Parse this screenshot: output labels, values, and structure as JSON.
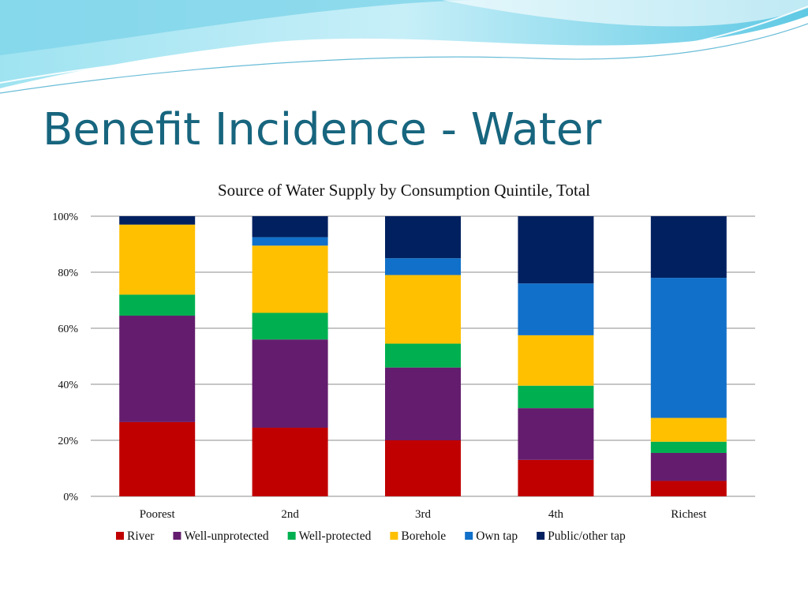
{
  "slide": {
    "title": "Benefit Incidence - Water"
  },
  "colors": {
    "title": "#17657e",
    "wave_light": "#aee6f2",
    "wave_mid": "#5cc8e3",
    "wave_dark": "#2a9fc6"
  },
  "chart_data": {
    "type": "bar",
    "stacked": true,
    "title": "Source of Water Supply by Consumption Quintile, Total",
    "xlabel": "",
    "ylabel": "",
    "ylim": [
      0,
      100
    ],
    "y_ticks": [
      "0%",
      "20%",
      "40%",
      "60%",
      "80%",
      "100%"
    ],
    "y_tick_values": [
      0,
      20,
      40,
      60,
      80,
      100
    ],
    "grid": true,
    "legend_position": "bottom",
    "categories": [
      "Poorest",
      "2nd",
      "3rd",
      "4th",
      "Richest"
    ],
    "series": [
      {
        "name": "River",
        "color": "#c00000",
        "values": [
          26.5,
          24.5,
          20,
          13,
          5.5
        ]
      },
      {
        "name": "Well-unprotected",
        "color": "#641d6e",
        "values": [
          38,
          31.5,
          26,
          18.5,
          10
        ]
      },
      {
        "name": "Well-protected",
        "color": "#00b050",
        "values": [
          7.5,
          9.5,
          8.5,
          8,
          4
        ]
      },
      {
        "name": "Borehole",
        "color": "#ffc000",
        "values": [
          25,
          24,
          24.5,
          18,
          8.5
        ]
      },
      {
        "name": "Own tap",
        "color": "#1170c9",
        "values": [
          0,
          3,
          6,
          18.5,
          50
        ]
      },
      {
        "name": "Public/other tap",
        "color": "#002060",
        "values": [
          3,
          7.5,
          15,
          24,
          22
        ]
      }
    ]
  }
}
